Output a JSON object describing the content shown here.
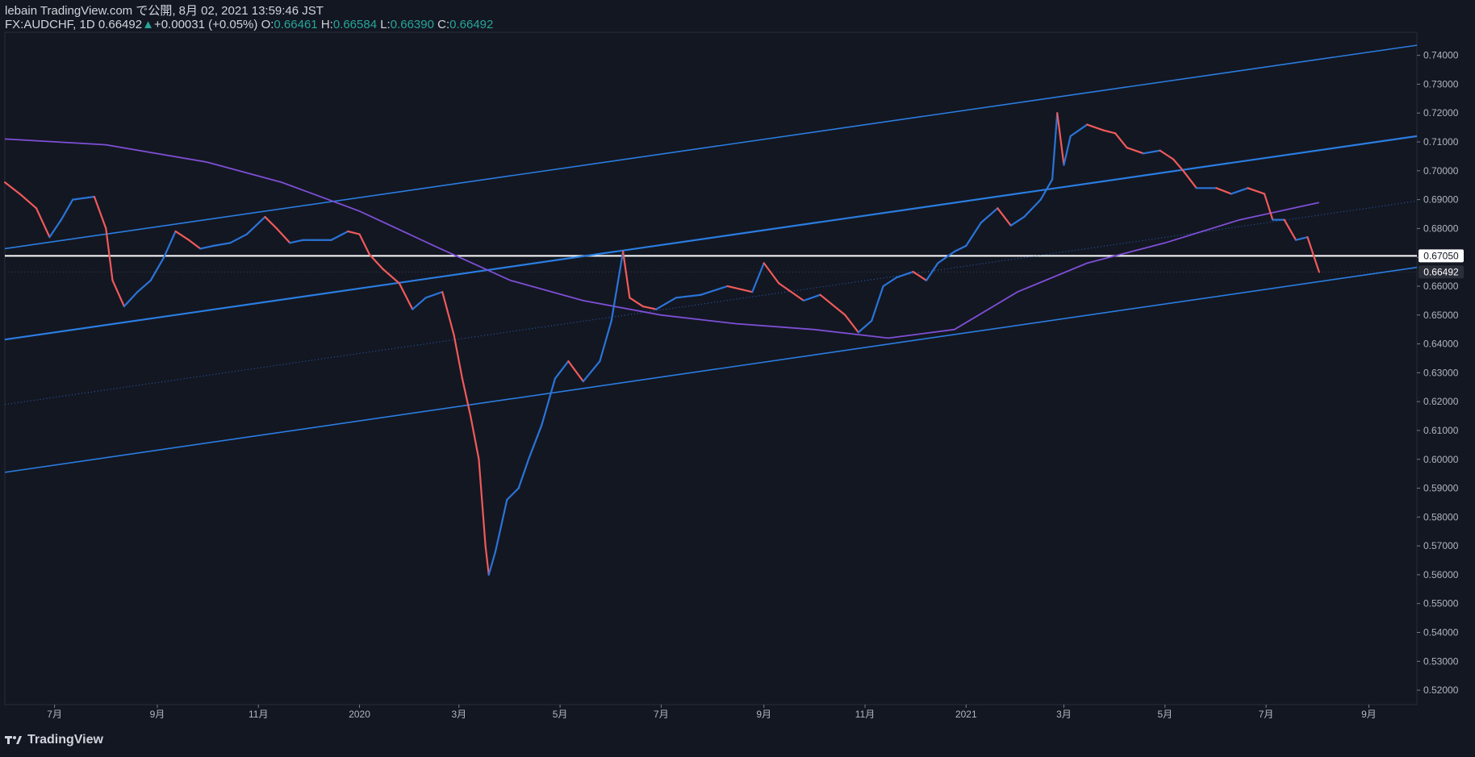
{
  "header": {
    "line1": "lebain TradingView.com で公開, 8月 02, 2021 13:59:46 JST",
    "symbol": "FX:AUDCHF, 1D",
    "last": "0.66492",
    "change": "+0.00031 (+0.05%)",
    "o_label": "O:",
    "o": "0.66461",
    "h_label": "H:",
    "h": "0.66584",
    "l_label": "L:",
    "l": "0.66390",
    "c_label": "C:",
    "c": "0.66492"
  },
  "footer": {
    "brand": "TradingView"
  },
  "colors": {
    "background": "#131722",
    "up": "#2a74d8",
    "down": "#f05a5a",
    "channel": "#2a7de1",
    "ma": "#7e4fd6",
    "level": "#ffffff",
    "ohlc_value": "#26a69a"
  },
  "chart_data": {
    "type": "line",
    "symbol": "FX:AUDCHF",
    "interval": "1D",
    "ylim": [
      0.515,
      0.748
    ],
    "y_ticks": [
      "0.52000",
      "0.53000",
      "0.54000",
      "0.55000",
      "0.56000",
      "0.57000",
      "0.58000",
      "0.59000",
      "0.60000",
      "0.61000",
      "0.62000",
      "0.63000",
      "0.64000",
      "0.65000",
      "0.66000",
      "0.67000",
      "0.68000",
      "0.69000",
      "0.70000",
      "0.71000",
      "0.72000",
      "0.73000",
      "0.74000"
    ],
    "x_range": [
      "2019-06-01",
      "2021-09-30"
    ],
    "x_ticks": [
      {
        "date": "2019-07-01",
        "label": "7月"
      },
      {
        "date": "2019-09-01",
        "label": "9月"
      },
      {
        "date": "2019-11-01",
        "label": "11月"
      },
      {
        "date": "2020-01-01",
        "label": "2020"
      },
      {
        "date": "2020-03-01",
        "label": "3月"
      },
      {
        "date": "2020-05-01",
        "label": "5月"
      },
      {
        "date": "2020-07-01",
        "label": "7月"
      },
      {
        "date": "2020-09-01",
        "label": "9月"
      },
      {
        "date": "2020-11-01",
        "label": "11月"
      },
      {
        "date": "2021-01-01",
        "label": "2021"
      },
      {
        "date": "2021-03-01",
        "label": "3月"
      },
      {
        "date": "2021-05-01",
        "label": "5月"
      },
      {
        "date": "2021-07-01",
        "label": "7月"
      },
      {
        "date": "2021-09-01",
        "label": "9月"
      }
    ],
    "price_series": {
      "name": "AUDCHF",
      "points": [
        [
          "2019-06-01",
          0.696
        ],
        [
          "2019-06-10",
          0.692
        ],
        [
          "2019-06-20",
          0.687
        ],
        [
          "2019-06-28",
          0.677
        ],
        [
          "2019-07-05",
          0.683
        ],
        [
          "2019-07-12",
          0.69
        ],
        [
          "2019-07-25",
          0.691
        ],
        [
          "2019-08-01",
          0.68
        ],
        [
          "2019-08-05",
          0.662
        ],
        [
          "2019-08-12",
          0.653
        ],
        [
          "2019-08-20",
          0.658
        ],
        [
          "2019-08-28",
          0.662
        ],
        [
          "2019-09-05",
          0.67
        ],
        [
          "2019-09-12",
          0.679
        ],
        [
          "2019-09-20",
          0.676
        ],
        [
          "2019-09-27",
          0.673
        ],
        [
          "2019-10-05",
          0.674
        ],
        [
          "2019-10-15",
          0.675
        ],
        [
          "2019-10-25",
          0.678
        ],
        [
          "2019-11-05",
          0.684
        ],
        [
          "2019-11-12",
          0.68
        ],
        [
          "2019-11-20",
          0.675
        ],
        [
          "2019-11-28",
          0.676
        ],
        [
          "2019-12-05",
          0.676
        ],
        [
          "2019-12-15",
          0.676
        ],
        [
          "2019-12-25",
          0.679
        ],
        [
          "2020-01-01",
          0.678
        ],
        [
          "2020-01-07",
          0.671
        ],
        [
          "2020-01-15",
          0.666
        ],
        [
          "2020-01-25",
          0.661
        ],
        [
          "2020-02-02",
          0.652
        ],
        [
          "2020-02-10",
          0.656
        ],
        [
          "2020-02-20",
          0.658
        ],
        [
          "2020-02-27",
          0.643
        ],
        [
          "2020-03-03",
          0.628
        ],
        [
          "2020-03-08",
          0.615
        ],
        [
          "2020-03-13",
          0.6
        ],
        [
          "2020-03-17",
          0.57
        ],
        [
          "2020-03-19",
          0.56
        ],
        [
          "2020-03-23",
          0.568
        ],
        [
          "2020-03-30",
          0.586
        ],
        [
          "2020-04-06",
          0.59
        ],
        [
          "2020-04-12",
          0.6
        ],
        [
          "2020-04-20",
          0.612
        ],
        [
          "2020-04-28",
          0.628
        ],
        [
          "2020-05-06",
          0.634
        ],
        [
          "2020-05-15",
          0.627
        ],
        [
          "2020-05-25",
          0.634
        ],
        [
          "2020-06-01",
          0.648
        ],
        [
          "2020-06-08",
          0.672
        ],
        [
          "2020-06-12",
          0.656
        ],
        [
          "2020-06-20",
          0.653
        ],
        [
          "2020-06-28",
          0.652
        ],
        [
          "2020-07-10",
          0.656
        ],
        [
          "2020-07-25",
          0.657
        ],
        [
          "2020-08-10",
          0.66
        ],
        [
          "2020-08-25",
          0.658
        ],
        [
          "2020-09-01",
          0.668
        ],
        [
          "2020-09-10",
          0.661
        ],
        [
          "2020-09-25",
          0.655
        ],
        [
          "2020-10-05",
          0.657
        ],
        [
          "2020-10-20",
          0.65
        ],
        [
          "2020-10-28",
          0.644
        ],
        [
          "2020-11-05",
          0.648
        ],
        [
          "2020-11-12",
          0.66
        ],
        [
          "2020-11-20",
          0.663
        ],
        [
          "2020-11-30",
          0.665
        ],
        [
          "2020-12-08",
          0.662
        ],
        [
          "2020-12-15",
          0.668
        ],
        [
          "2020-12-25",
          0.672
        ],
        [
          "2021-01-01",
          0.674
        ],
        [
          "2021-01-10",
          0.682
        ],
        [
          "2021-01-20",
          0.687
        ],
        [
          "2021-01-28",
          0.681
        ],
        [
          "2021-02-05",
          0.684
        ],
        [
          "2021-02-15",
          0.69
        ],
        [
          "2021-02-22",
          0.697
        ],
        [
          "2021-02-25",
          0.72
        ],
        [
          "2021-03-01",
          0.702
        ],
        [
          "2021-03-05",
          0.712
        ],
        [
          "2021-03-15",
          0.716
        ],
        [
          "2021-03-25",
          0.714
        ],
        [
          "2021-04-01",
          0.713
        ],
        [
          "2021-04-08",
          0.708
        ],
        [
          "2021-04-18",
          0.706
        ],
        [
          "2021-04-28",
          0.707
        ],
        [
          "2021-05-06",
          0.704
        ],
        [
          "2021-05-12",
          0.7
        ],
        [
          "2021-05-20",
          0.694
        ],
        [
          "2021-06-01",
          0.694
        ],
        [
          "2021-06-10",
          0.692
        ],
        [
          "2021-06-20",
          0.694
        ],
        [
          "2021-06-30",
          0.692
        ],
        [
          "2021-07-05",
          0.683
        ],
        [
          "2021-07-12",
          0.683
        ],
        [
          "2021-07-19",
          0.676
        ],
        [
          "2021-07-26",
          0.677
        ],
        [
          "2021-08-02",
          0.6649
        ]
      ]
    },
    "moving_average": {
      "points": [
        [
          "2019-06-01",
          0.711
        ],
        [
          "2019-08-01",
          0.709
        ],
        [
          "2019-10-01",
          0.703
        ],
        [
          "2019-11-15",
          0.696
        ],
        [
          "2020-01-01",
          0.686
        ],
        [
          "2020-02-15",
          0.674
        ],
        [
          "2020-04-01",
          0.662
        ],
        [
          "2020-05-15",
          0.655
        ],
        [
          "2020-07-01",
          0.65
        ],
        [
          "2020-08-15",
          0.647
        ],
        [
          "2020-10-01",
          0.645
        ],
        [
          "2020-11-15",
          0.642
        ],
        [
          "2020-12-25",
          0.645
        ],
        [
          "2021-02-01",
          0.658
        ],
        [
          "2021-03-15",
          0.668
        ],
        [
          "2021-05-01",
          0.675
        ],
        [
          "2021-06-15",
          0.683
        ],
        [
          "2021-08-02",
          0.689
        ]
      ]
    },
    "channel_lines": [
      {
        "role": "upper",
        "from": [
          "2019-06-01",
          0.673
        ],
        "to": [
          "2021-09-30",
          0.7435
        ]
      },
      {
        "role": "middle",
        "from": [
          "2019-06-01",
          0.6415
        ],
        "to": [
          "2021-09-30",
          0.712
        ]
      },
      {
        "role": "lower",
        "from": [
          "2019-06-01",
          0.5955
        ],
        "to": [
          "2021-09-30",
          0.6665
        ]
      },
      {
        "role": "median-dotted",
        "from": [
          "2019-06-01",
          0.619
        ],
        "to": [
          "2021-09-30",
          0.6895
        ]
      }
    ],
    "horizontal_level": {
      "value": 0.6705,
      "label": "0.67050"
    },
    "last_price": {
      "value": 0.66492,
      "label": "0.66492"
    }
  }
}
